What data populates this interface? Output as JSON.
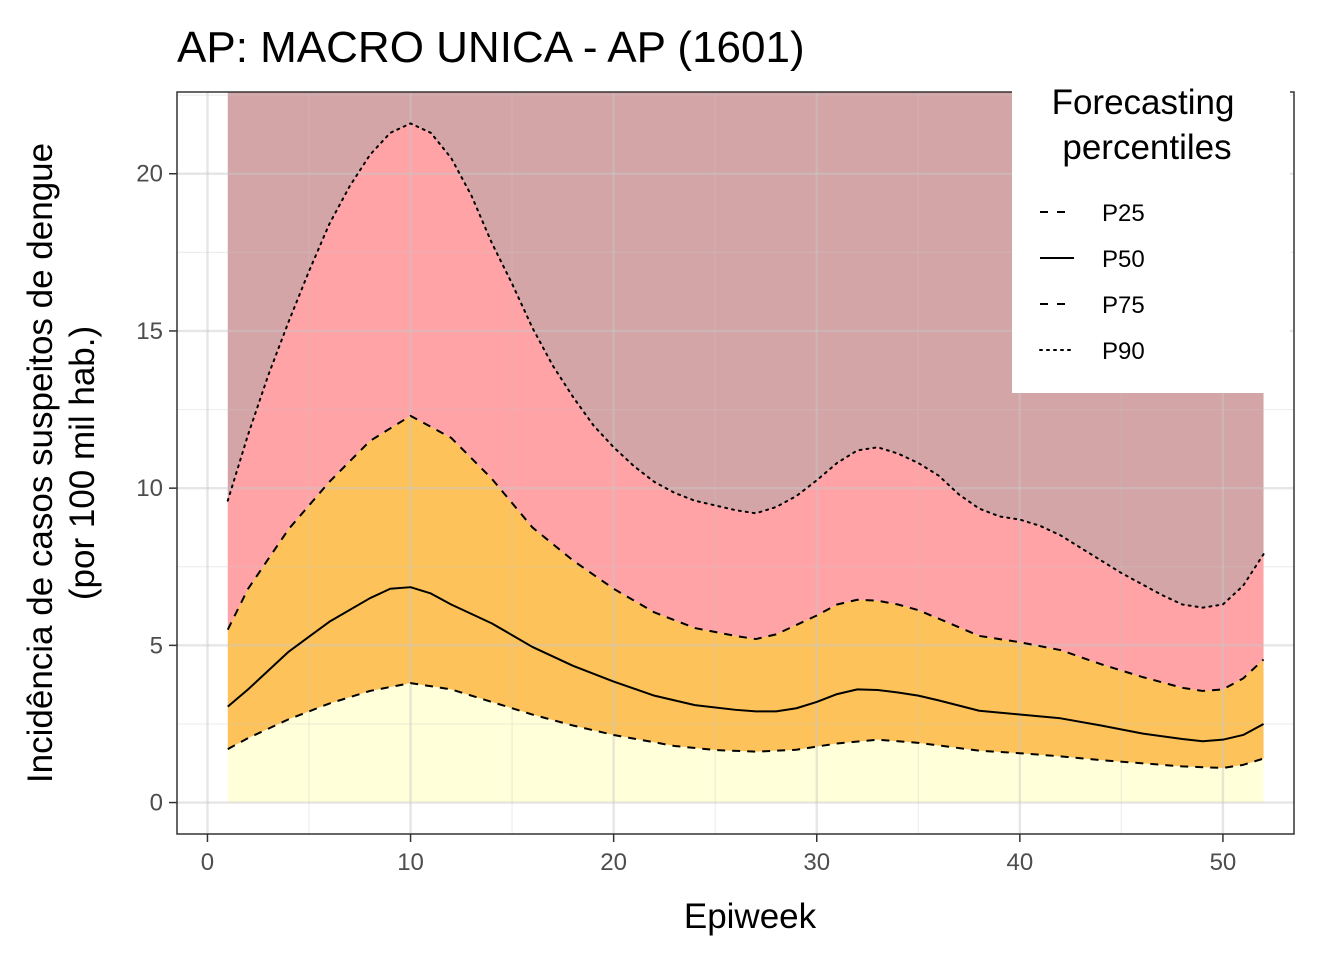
{
  "chart_data": {
    "type": "area",
    "title": "AP: MACRO UNICA - AP (1601)",
    "xlabel": "Epiweek",
    "ylabel_line1": "Incidência de casos suspeitos de dengue",
    "ylabel_line2": "(por 100 mil hab.)",
    "xlim": [
      -1.5,
      53.5
    ],
    "ylim": [
      -1.0,
      22.6
    ],
    "x_ticks": [
      0,
      10,
      20,
      30,
      40,
      50
    ],
    "y_ticks": [
      0,
      5,
      10,
      15,
      20
    ],
    "grid": true,
    "legend": {
      "title_line1": "Forecasting",
      "title_line2": "percentiles",
      "position": "top-right",
      "entries": [
        {
          "label": "P25",
          "dash": "dashed"
        },
        {
          "label": "P50",
          "dash": "solid"
        },
        {
          "label": "P75",
          "dash": "dashed"
        },
        {
          "label": "P90",
          "dash": "dotted"
        }
      ]
    },
    "band_colors": {
      "below_p25": "#ffffd9",
      "p25_to_p75": "#fdc35a",
      "p75_to_p90": "#ffa3a6",
      "above_p90": "#d4a5a6"
    },
    "series": [
      {
        "name": "P25",
        "x": [
          1,
          2,
          4,
          6,
          8,
          10,
          12,
          14,
          16,
          18,
          20,
          23,
          25,
          27,
          29,
          31,
          33,
          35,
          38,
          40,
          42,
          44,
          46,
          48,
          50,
          51,
          52
        ],
        "y": [
          1.7,
          2.05,
          2.65,
          3.15,
          3.55,
          3.8,
          3.6,
          3.2,
          2.8,
          2.45,
          2.15,
          1.8,
          1.67,
          1.62,
          1.68,
          1.88,
          2.0,
          1.9,
          1.65,
          1.57,
          1.47,
          1.35,
          1.25,
          1.15,
          1.1,
          1.2,
          1.4
        ]
      },
      {
        "name": "P50",
        "x": [
          1,
          2,
          4,
          6,
          8,
          9,
          10,
          11,
          12,
          14,
          16,
          18,
          20,
          22,
          24,
          26,
          27,
          28,
          29,
          30,
          31,
          32,
          33,
          34,
          35,
          36,
          38,
          40,
          42,
          44,
          46,
          48,
          49,
          50,
          51,
          52
        ],
        "y": [
          3.05,
          3.6,
          4.8,
          5.75,
          6.5,
          6.8,
          6.85,
          6.65,
          6.3,
          5.7,
          4.95,
          4.35,
          3.85,
          3.4,
          3.1,
          2.95,
          2.9,
          2.9,
          3.0,
          3.2,
          3.45,
          3.6,
          3.58,
          3.5,
          3.4,
          3.25,
          2.92,
          2.8,
          2.68,
          2.45,
          2.2,
          2.02,
          1.95,
          2.0,
          2.15,
          2.5
        ]
      },
      {
        "name": "P75",
        "x": [
          1,
          2,
          4,
          6,
          8,
          10,
          12,
          14,
          16,
          18,
          20,
          22,
          24,
          26,
          27,
          28,
          30,
          31,
          32,
          33,
          34,
          35,
          36,
          38,
          40,
          42,
          44,
          46,
          48,
          49,
          50,
          51,
          52
        ],
        "y": [
          5.5,
          6.8,
          8.7,
          10.2,
          11.5,
          12.3,
          11.6,
          10.3,
          8.75,
          7.7,
          6.8,
          6.05,
          5.55,
          5.3,
          5.2,
          5.35,
          5.95,
          6.3,
          6.45,
          6.42,
          6.3,
          6.12,
          5.85,
          5.3,
          5.1,
          4.85,
          4.4,
          4.0,
          3.65,
          3.55,
          3.6,
          3.95,
          4.55
        ]
      },
      {
        "name": "P90",
        "x": [
          1,
          2,
          3,
          4,
          5,
          6,
          7,
          8,
          9,
          10,
          11,
          12,
          13,
          14,
          15,
          16,
          17,
          18,
          19,
          20,
          21,
          22,
          23,
          24,
          25,
          26,
          27,
          28,
          29,
          30,
          31,
          32,
          33,
          34,
          35,
          36,
          37,
          38,
          39,
          40,
          41,
          42,
          43,
          44,
          45,
          46,
          47,
          48,
          49,
          50,
          51,
          52
        ],
        "y": [
          9.6,
          11.7,
          13.6,
          15.3,
          16.9,
          18.4,
          19.6,
          20.6,
          21.3,
          21.6,
          21.3,
          20.5,
          19.3,
          17.8,
          16.5,
          15.1,
          13.9,
          12.9,
          12.0,
          11.3,
          10.7,
          10.2,
          9.85,
          9.6,
          9.45,
          9.3,
          9.2,
          9.4,
          9.75,
          10.25,
          10.8,
          11.2,
          11.3,
          11.1,
          10.8,
          10.4,
          9.8,
          9.35,
          9.1,
          9.0,
          8.8,
          8.5,
          8.1,
          7.7,
          7.3,
          6.95,
          6.6,
          6.3,
          6.2,
          6.3,
          6.9,
          7.9
        ]
      }
    ]
  }
}
